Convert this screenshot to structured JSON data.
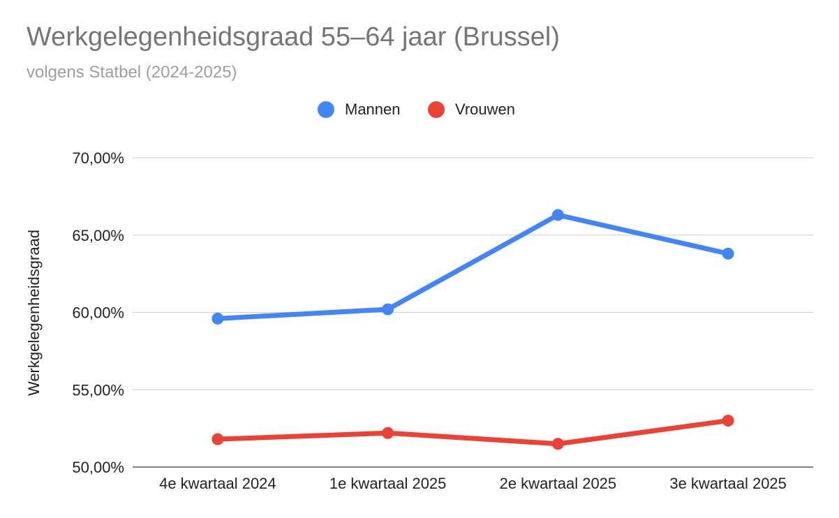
{
  "title": "Werkgelegenheidsgraad 55–64 jaar (Brussel)",
  "subtitle": "volgens Statbel (2024-2025)",
  "chart_data": {
    "type": "line",
    "title": "Werkgelegenheidsgraad 55–64 jaar (Brussel)",
    "subtitle": "volgens Statbel (2024-2025)",
    "xlabel": "",
    "ylabel": "Werkgelegenheidsgraad",
    "categories": [
      "4e kwartaal 2024",
      "1e kwartaal 2025",
      "2e kwartaal 2025",
      "3e kwartaal 2025"
    ],
    "series": [
      {
        "name": "Mannen",
        "color": "#4285F4",
        "values": [
          59.6,
          60.2,
          66.3,
          63.8
        ]
      },
      {
        "name": "Vrouwen",
        "color": "#EA4335",
        "values": [
          51.8,
          52.2,
          51.5,
          53.0
        ]
      }
    ],
    "ylim": [
      50,
      70
    ],
    "yticks": [
      "50,00%",
      "55,00%",
      "60,00%",
      "65,00%",
      "70,00%"
    ],
    "grid": true,
    "legend": "top-center"
  }
}
